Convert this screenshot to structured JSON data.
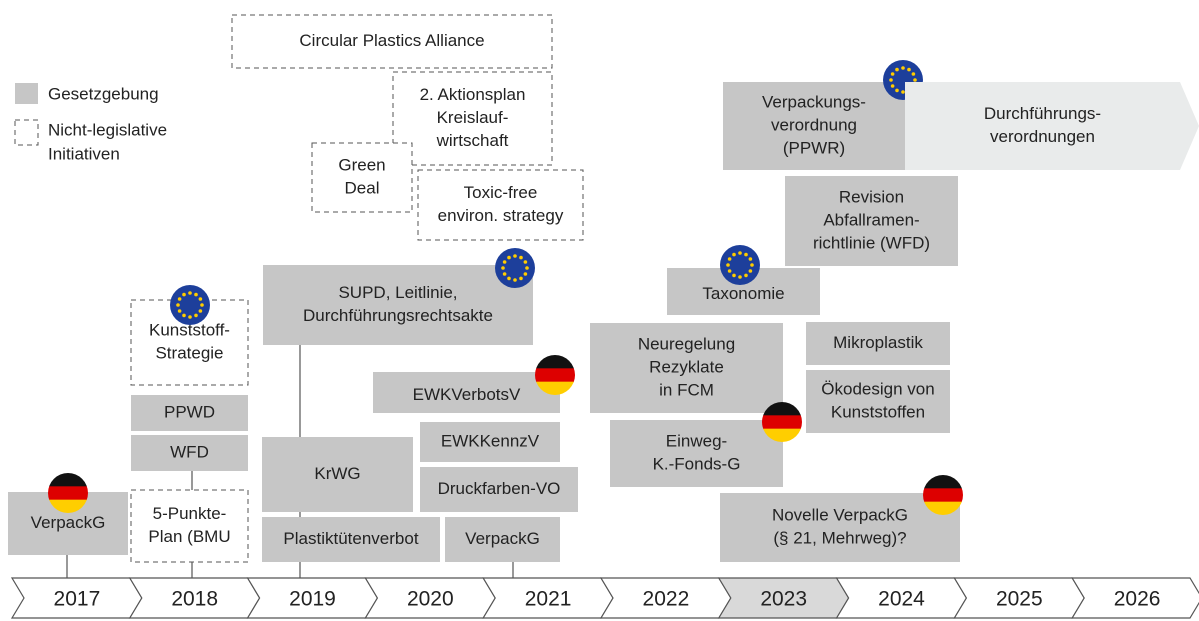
{
  "legend": {
    "legislative": "Gesetzgebung",
    "non_legislative": [
      "Nicht-legislative",
      "Initiativen"
    ]
  },
  "items": [
    {
      "lines": [
        "VerpackG"
      ],
      "kind": "legislative",
      "flag": "de"
    },
    {
      "lines": [
        "PPWD"
      ],
      "kind": "legislative"
    },
    {
      "lines": [
        "WFD"
      ],
      "kind": "legislative"
    },
    {
      "lines": [
        "Kunststoff-",
        "Strategie"
      ],
      "kind": "non_legislative",
      "flag": "eu"
    },
    {
      "lines": [
        "5-Punkte-",
        "Plan (BMU"
      ],
      "kind": "non_legislative"
    },
    {
      "lines": [
        "Circular Plastics Alliance"
      ],
      "kind": "non_legislative"
    },
    {
      "lines": [
        "2. Aktionsplan",
        "Kreislauf-",
        "wirtschaft"
      ],
      "kind": "non_legislative"
    },
    {
      "lines": [
        "Green",
        "Deal"
      ],
      "kind": "non_legislative"
    },
    {
      "lines": [
        "Toxic-free",
        "environ. strategy"
      ],
      "kind": "non_legislative"
    },
    {
      "lines": [
        "SUPD, Leitlinie,",
        "Durchführungsrechtsakte"
      ],
      "kind": "legislative",
      "flag": "eu"
    },
    {
      "lines": [
        "KrWG"
      ],
      "kind": "legislative"
    },
    {
      "lines": [
        "Plastiktütenverbot"
      ],
      "kind": "legislative"
    },
    {
      "lines": [
        "EWKVerbotsV"
      ],
      "kind": "legislative",
      "flag": "de"
    },
    {
      "lines": [
        "EWKKennzV"
      ],
      "kind": "legislative"
    },
    {
      "lines": [
        "Druckfarben-VO"
      ],
      "kind": "legislative"
    },
    {
      "lines": [
        "VerpackG"
      ],
      "kind": "legislative"
    },
    {
      "lines": [
        "Neuregelung",
        "Rezyklate",
        "in FCM"
      ],
      "kind": "legislative"
    },
    {
      "lines": [
        "Taxonomie"
      ],
      "kind": "legislative",
      "flag": "eu"
    },
    {
      "lines": [
        "Einweg-",
        "K.-Fonds-G"
      ],
      "kind": "legislative",
      "flag": "de"
    },
    {
      "lines": [
        "Verpackungs-",
        "verordnung",
        "(PPWR)"
      ],
      "kind": "legislative",
      "flag": "eu"
    },
    {
      "lines": [
        "Durchführungs-",
        "verordnungen"
      ],
      "kind": "future"
    },
    {
      "lines": [
        "Revision",
        "Abfallramen-",
        "richtlinie (WFD)"
      ],
      "kind": "legislative"
    },
    {
      "lines": [
        "Mikroplastik"
      ],
      "kind": "legislative"
    },
    {
      "lines": [
        "Ökodesign von",
        "Kunststoffen"
      ],
      "kind": "legislative"
    },
    {
      "lines": [
        "Novelle VerpackG",
        "(§ 21, Mehrweg)?"
      ],
      "kind": "legislative",
      "flag": "de"
    }
  ],
  "years": [
    {
      "label": "2017"
    },
    {
      "label": "2018"
    },
    {
      "label": "2019"
    },
    {
      "label": "2020"
    },
    {
      "label": "2021"
    },
    {
      "label": "2022"
    },
    {
      "label": "2023",
      "highlight": true
    },
    {
      "label": "2024"
    },
    {
      "label": "2025"
    },
    {
      "label": "2026"
    }
  ]
}
